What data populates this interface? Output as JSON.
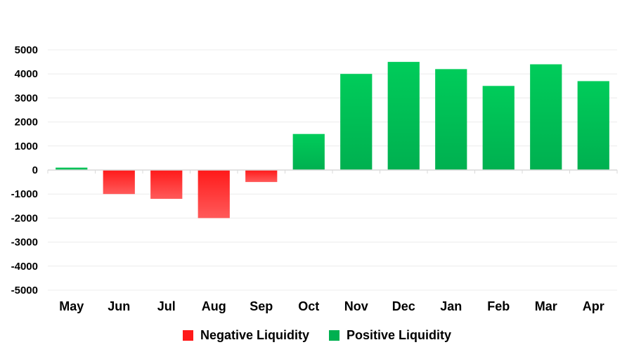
{
  "chart_data": {
    "type": "bar",
    "categories": [
      "May",
      "Jun",
      "Jul",
      "Aug",
      "Sep",
      "Oct",
      "Nov",
      "Dec",
      "Jan",
      "Feb",
      "Mar",
      "Apr"
    ],
    "values": [
      100,
      -1000,
      -1200,
      -2000,
      -500,
      1500,
      4000,
      4500,
      4200,
      3500,
      4400,
      3700
    ],
    "ylim": [
      -5000,
      5000
    ],
    "yticks": [
      5000,
      4000,
      3000,
      2000,
      1000,
      0,
      -1000,
      -2000,
      -3000,
      -4000,
      -5000
    ],
    "grid": true,
    "legend_position": "bottom",
    "series": [
      {
        "name": "Negative Liquidity",
        "color": "#ff1a1a"
      },
      {
        "name": "Positive Liquidity",
        "color": "#00b050"
      }
    ],
    "colors": {
      "negative_top": "#ff1a1a",
      "negative_bottom": "#ff5a5a",
      "positive_top": "#00cc5a",
      "positive_bottom": "#00b050",
      "grid": "#ececec",
      "axis": "#d9d9d9"
    }
  }
}
